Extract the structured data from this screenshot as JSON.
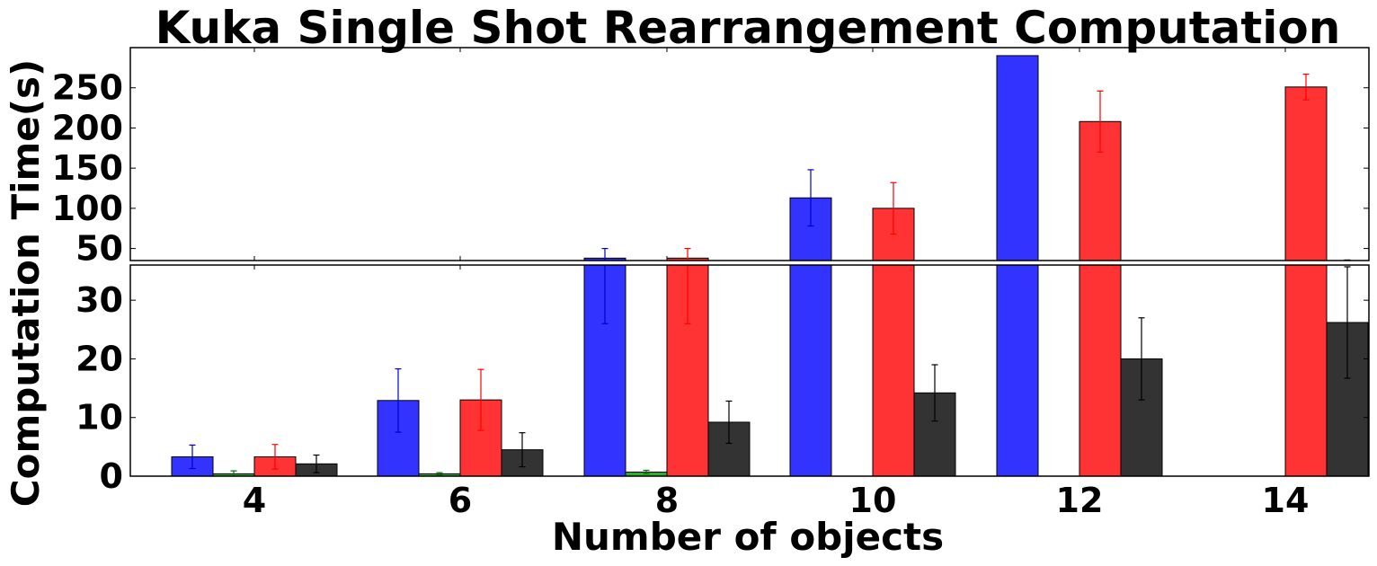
{
  "chart_data": {
    "type": "bar",
    "title": "Kuka Single Shot Rearrangement Computation",
    "xlabel": "Number of objects",
    "ylabel": "Computation Time(s)",
    "categories": [
      "4",
      "6",
      "8",
      "10",
      "12",
      "14"
    ],
    "x_tick_labels": [
      "4",
      "6",
      "8",
      "10",
      "12",
      "14"
    ],
    "broken_axis": true,
    "upper_panel": {
      "ylim": [
        35,
        300
      ],
      "yticks": [
        50,
        100,
        150,
        200,
        250
      ],
      "ytick_labels": [
        "50",
        "100",
        "150",
        "200",
        "250"
      ]
    },
    "lower_panel": {
      "ylim": [
        0,
        36
      ],
      "yticks": [
        0,
        10,
        20,
        30
      ],
      "ytick_labels": [
        "0",
        "10",
        "20",
        "30"
      ]
    },
    "grid": false,
    "series": [
      {
        "color": "#3333ff",
        "errcolor": "#0000cc",
        "values": [
          3.3,
          12.9,
          38,
          113,
          290,
          null
        ],
        "errors": [
          2.0,
          5.4,
          12,
          35,
          null,
          null
        ]
      },
      {
        "color": "#33aa33",
        "errcolor": "#007700",
        "values": [
          0.4,
          0.4,
          0.7,
          null,
          null,
          null
        ],
        "errors": [
          0.5,
          0.2,
          0.3,
          null,
          null,
          null
        ]
      },
      {
        "color": "#ff3333",
        "errcolor": "#ff0000",
        "values": [
          3.3,
          13.0,
          38,
          100,
          208,
          251
        ],
        "errors": [
          2.1,
          5.2,
          12,
          32,
          38,
          16
        ]
      },
      {
        "color": "#333333",
        "errcolor": "#000000",
        "values": [
          2.1,
          4.5,
          9.2,
          14.2,
          20.0,
          26.2
        ],
        "errors": [
          1.5,
          2.9,
          3.6,
          4.8,
          7.0,
          9.5
        ]
      }
    ]
  }
}
